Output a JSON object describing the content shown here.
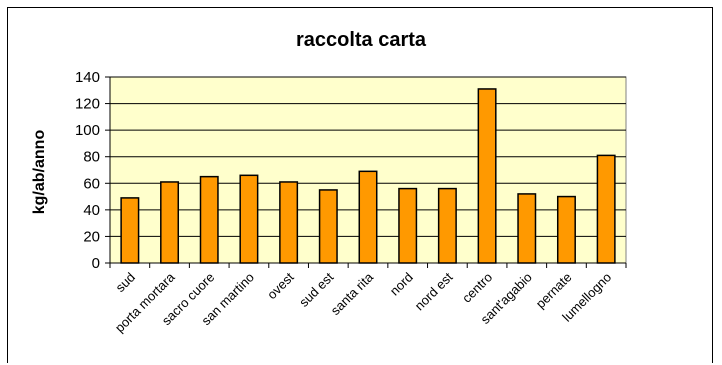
{
  "chart_data": {
    "type": "bar",
    "title": "raccolta carta",
    "xlabel": "",
    "ylabel": "kg/ab/anno",
    "ylim": [
      0,
      140
    ],
    "yticks": [
      0,
      20,
      40,
      60,
      80,
      100,
      120,
      140
    ],
    "grid": true,
    "legend": "none",
    "categories": [
      "sud",
      "porta mortara",
      "sacro cuore",
      "san martino",
      "ovest",
      "sud est",
      "santa rita",
      "nord",
      "nord est",
      "centro",
      "sant'agabio",
      "pernate",
      "lumellogno"
    ],
    "series": [
      {
        "values": [
          49,
          61,
          65,
          66,
          61,
          55,
          69,
          56,
          56,
          131,
          52,
          50,
          81
        ]
      }
    ],
    "colors": {
      "bar": "#FF9900",
      "plot_background": "#FFFFCC",
      "gridline": "#000000"
    }
  }
}
